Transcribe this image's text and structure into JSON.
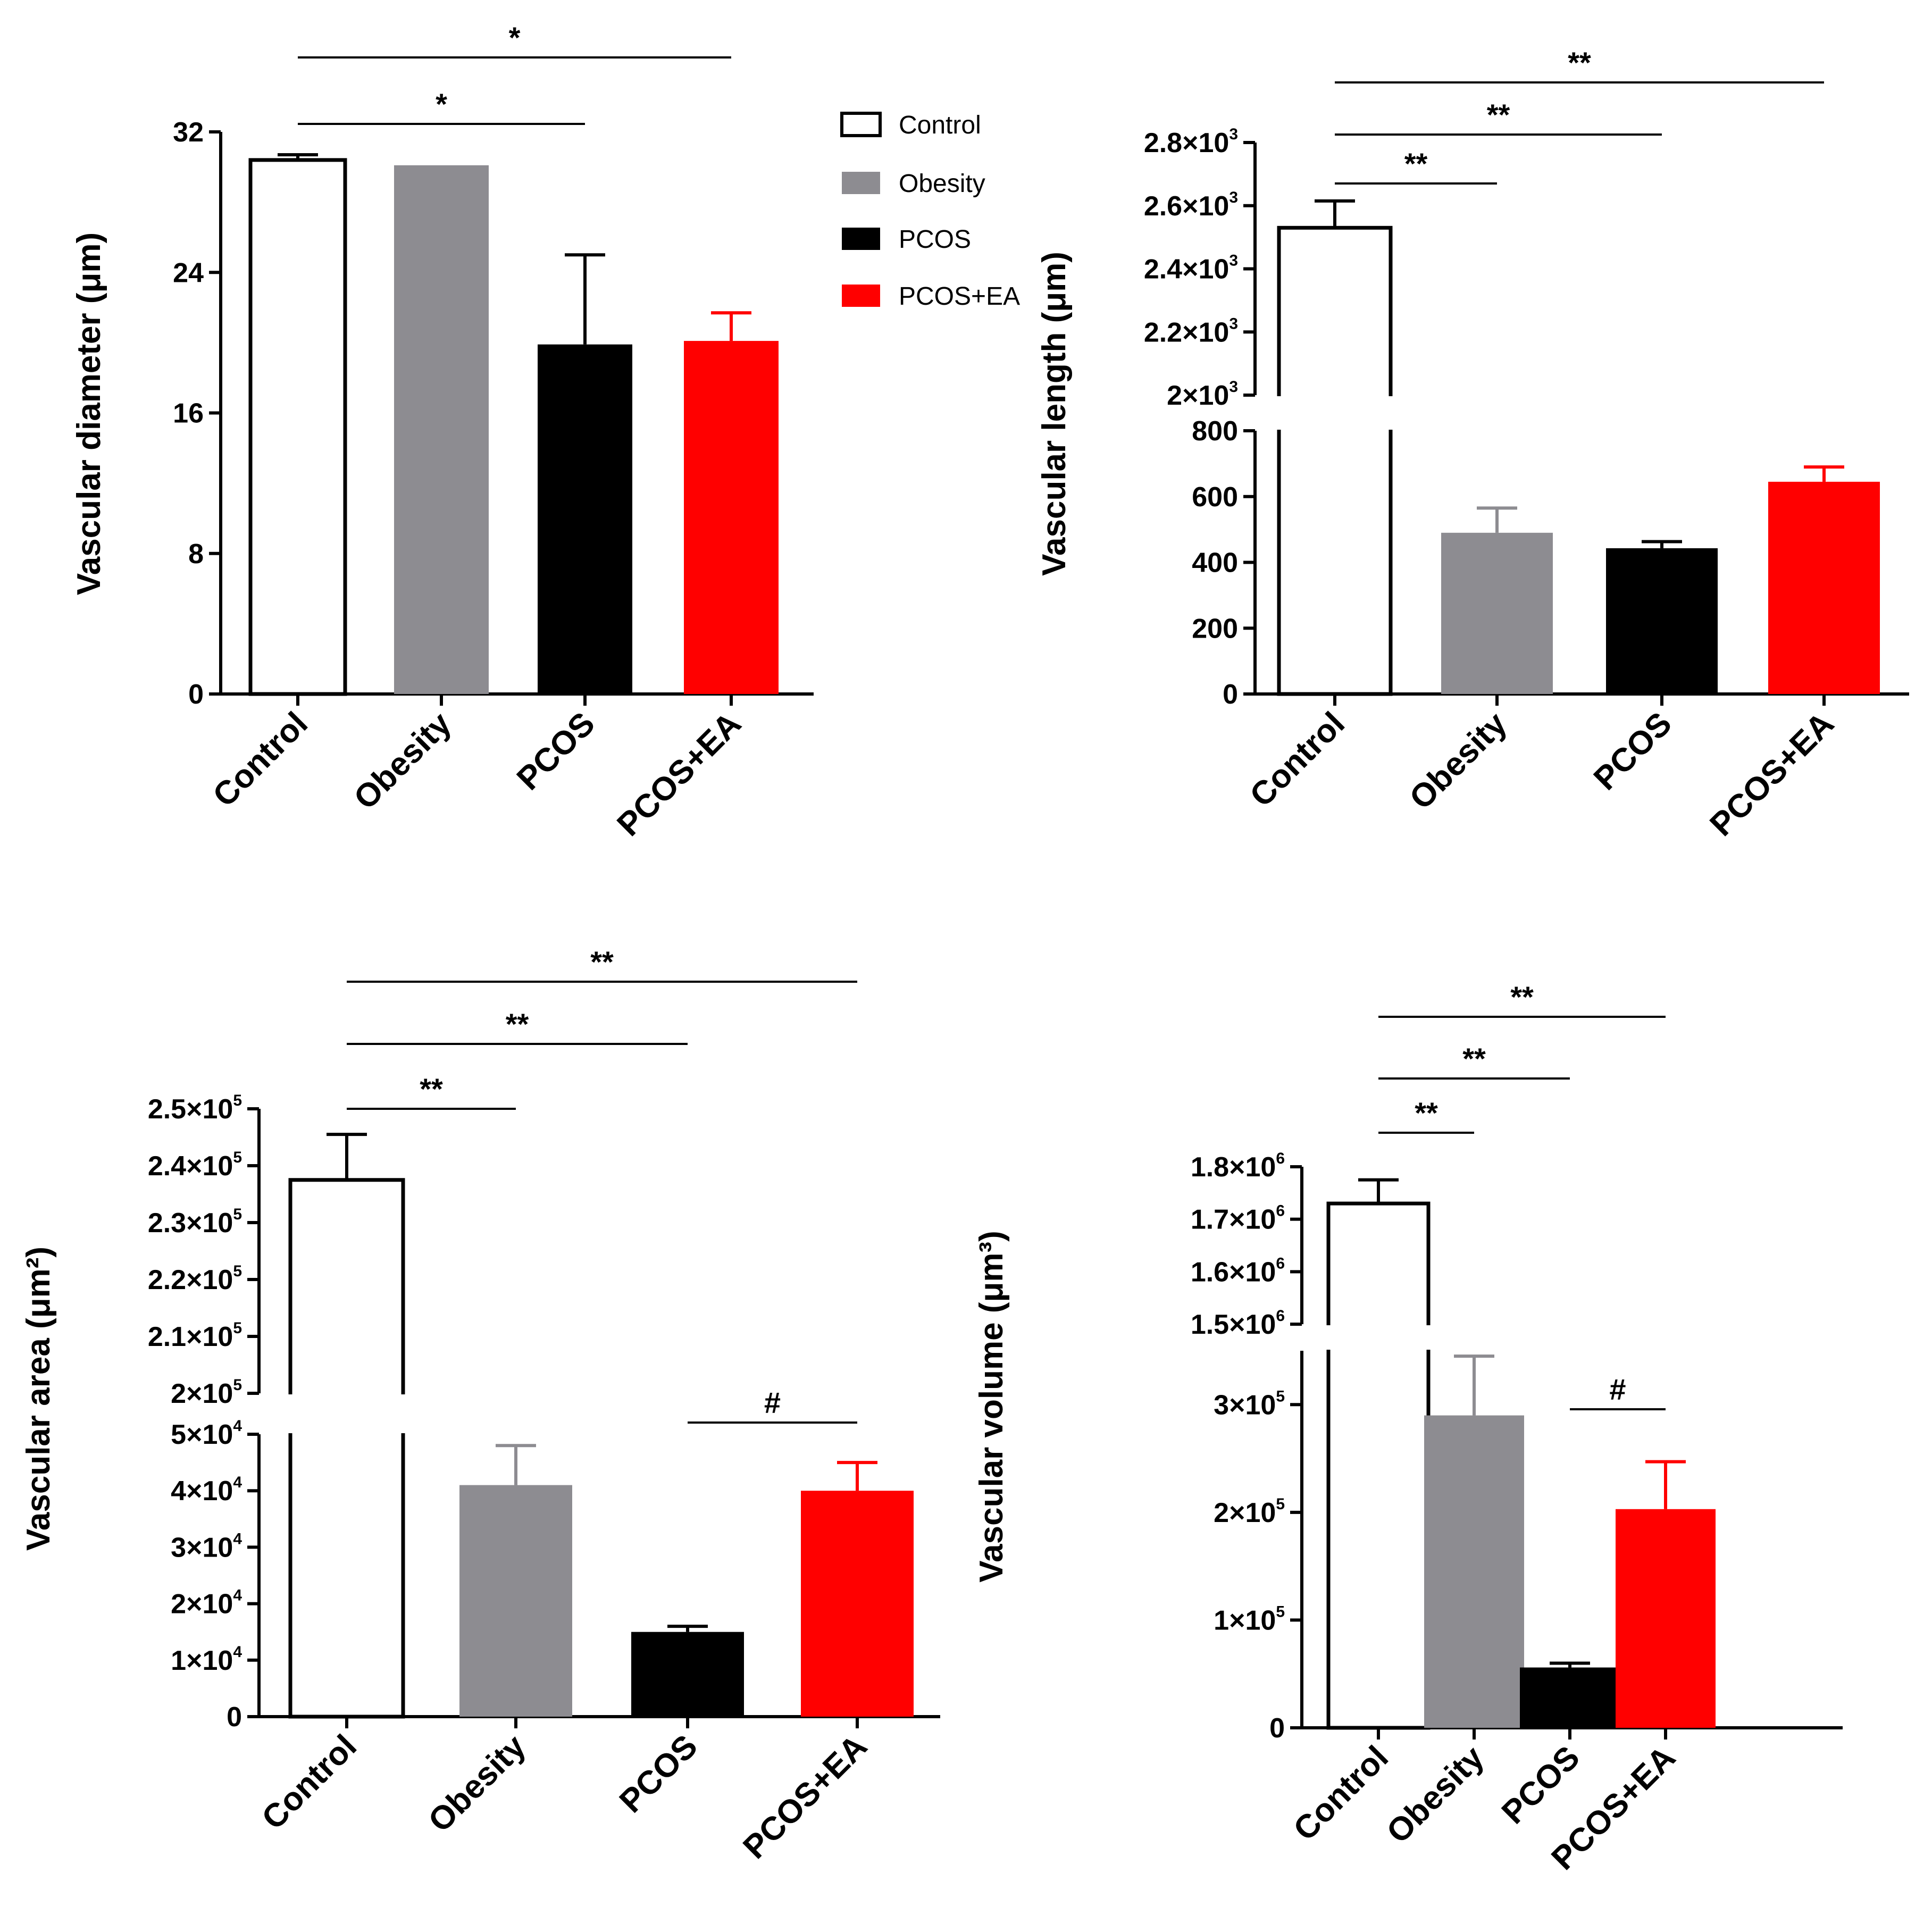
{
  "colors": {
    "Control": "#ffffff",
    "Obesity": "#8d8c91",
    "PCOS": "#000000",
    "PCOS+EA": "#ff0000"
  },
  "legend": {
    "position": "top-center",
    "entries": [
      "Control",
      "Obesity",
      "PCOS",
      "PCOS+EA"
    ]
  },
  "chart_data": [
    {
      "id": "diameter",
      "type": "bar",
      "title": "",
      "ylabel": "Vascular diameter (μm)",
      "categories": [
        "Control",
        "Obesity",
        "PCOS",
        "PCOS+EA"
      ],
      "values": [
        30.4,
        30.1,
        19.9,
        20.1
      ],
      "errors": [
        0.3,
        0,
        5.1,
        1.6
      ],
      "ylim": [
        0,
        32
      ],
      "ticks": [
        {
          "value": 0,
          "label": "0"
        },
        {
          "value": 8,
          "label": "8"
        },
        {
          "value": 16,
          "label": "16"
        },
        {
          "value": 24,
          "label": "24"
        },
        {
          "value": 32,
          "label": "32"
        }
      ],
      "significance": [
        {
          "from": 0,
          "to": 2,
          "level": 1,
          "label": "*"
        },
        {
          "from": 0,
          "to": 3,
          "level": 2,
          "label": "*"
        }
      ]
    },
    {
      "id": "length",
      "type": "bar",
      "title": "",
      "ylabel": "Vascular length (μm)",
      "categories": [
        "Control",
        "Obesity",
        "PCOS",
        "PCOS+EA"
      ],
      "values": [
        2530,
        490,
        443,
        645
      ],
      "errors": [
        85,
        75,
        20,
        45
      ],
      "ylim": [
        0,
        2800
      ],
      "axis_break": [
        800,
        2000
      ],
      "ticks": [
        {
          "value": 0,
          "label": "0"
        },
        {
          "value": 200,
          "label": "200"
        },
        {
          "value": 400,
          "label": "400"
        },
        {
          "value": 600,
          "label": "600"
        },
        {
          "value": 800,
          "label": "800"
        },
        {
          "value": 2000,
          "label": "2×10",
          "sup": "3"
        },
        {
          "value": 2200,
          "label": "2.2×10",
          "sup": "3"
        },
        {
          "value": 2400,
          "label": "2.4×10",
          "sup": "3"
        },
        {
          "value": 2600,
          "label": "2.6×10",
          "sup": "3"
        },
        {
          "value": 2800,
          "label": "2.8×10",
          "sup": "3"
        }
      ],
      "significance": [
        {
          "from": 0,
          "to": 1,
          "level": 1,
          "label": "**"
        },
        {
          "from": 0,
          "to": 2,
          "level": 2,
          "label": "**"
        },
        {
          "from": 0,
          "to": 3,
          "level": 3,
          "label": "**"
        }
      ]
    },
    {
      "id": "area",
      "type": "bar",
      "title": "",
      "ylabel": "Vascular area (μm²)",
      "categories": [
        "Control",
        "Obesity",
        "PCOS",
        "PCOS+EA"
      ],
      "values": [
        237500,
        41000,
        15000,
        40000
      ],
      "errors": [
        8000,
        7000,
        1000,
        5000
      ],
      "ylim": [
        0,
        250000
      ],
      "axis_break": [
        50000,
        200000
      ],
      "ticks": [
        {
          "value": 0,
          "label": "0"
        },
        {
          "value": 10000,
          "label": "1×10",
          "sup": "4"
        },
        {
          "value": 20000,
          "label": "2×10",
          "sup": "4"
        },
        {
          "value": 30000,
          "label": "3×10",
          "sup": "4"
        },
        {
          "value": 40000,
          "label": "4×10",
          "sup": "4"
        },
        {
          "value": 50000,
          "label": "5×10",
          "sup": "4"
        },
        {
          "value": 200000,
          "label": "2×10",
          "sup": "5"
        },
        {
          "value": 210000,
          "label": "2.1×10",
          "sup": "5"
        },
        {
          "value": 220000,
          "label": "2.2×10",
          "sup": "5"
        },
        {
          "value": 230000,
          "label": "2.3×10",
          "sup": "5"
        },
        {
          "value": 240000,
          "label": "2.4×10",
          "sup": "5"
        },
        {
          "value": 250000,
          "label": "2.5×10",
          "sup": "5"
        }
      ],
      "significance": [
        {
          "from": 0,
          "to": 1,
          "level": 1,
          "label": "**"
        },
        {
          "from": 0,
          "to": 2,
          "level": 2,
          "label": "**"
        },
        {
          "from": 0,
          "to": 3,
          "level": 3,
          "label": "**"
        },
        {
          "from": 2,
          "to": 3,
          "level": 0,
          "label": "#"
        }
      ]
    },
    {
      "id": "volume",
      "type": "bar",
      "title": "",
      "ylabel": "Vascular volume (μm³)",
      "categories": [
        "Control",
        "Obesity",
        "PCOS",
        "PCOS+EA"
      ],
      "values": [
        1730000,
        290000,
        56000,
        203000
      ],
      "errors": [
        45000,
        55000,
        4000,
        44000
      ],
      "ylim": [
        0,
        1800000
      ],
      "axis_break": [
        350000,
        1500000
      ],
      "ticks": [
        {
          "value": 0,
          "label": "0"
        },
        {
          "value": 100000,
          "label": "1×10",
          "sup": "5"
        },
        {
          "value": 200000,
          "label": "2×10",
          "sup": "5"
        },
        {
          "value": 300000,
          "label": "3×10",
          "sup": "5"
        },
        {
          "value": 1500000,
          "label": "1.5×10",
          "sup": "6"
        },
        {
          "value": 1600000,
          "label": "1.6×10",
          "sup": "6"
        },
        {
          "value": 1700000,
          "label": "1.7×10",
          "sup": "6"
        },
        {
          "value": 1800000,
          "label": "1.8×10",
          "sup": "6"
        }
      ],
      "significance": [
        {
          "from": 0,
          "to": 1,
          "level": 1,
          "label": "**"
        },
        {
          "from": 0,
          "to": 2,
          "level": 2,
          "label": "**"
        },
        {
          "from": 0,
          "to": 3,
          "level": 3,
          "label": "**"
        },
        {
          "from": 2,
          "to": 3,
          "level": 0,
          "label": "#"
        }
      ]
    }
  ]
}
